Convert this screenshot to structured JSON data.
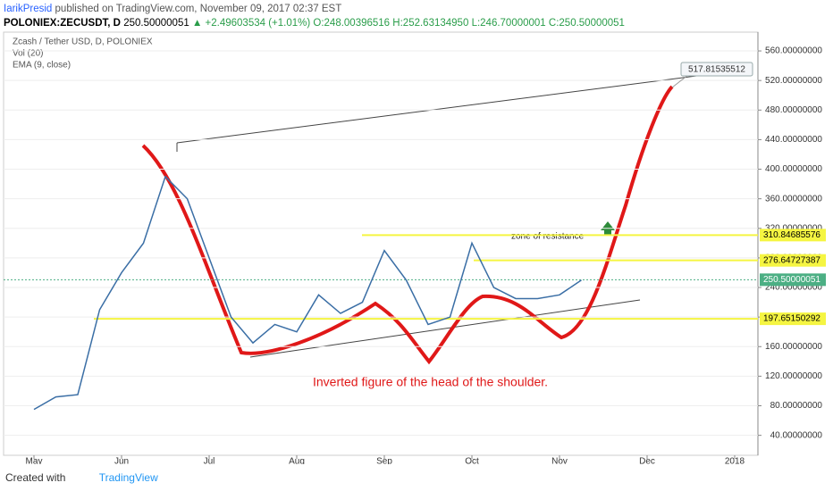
{
  "header": {
    "author": "IarikPresid",
    "published": "published on TradingView.com, November 09, 2017 02:37 EST",
    "symbol": "POLONIEX:ZECUSDT, D",
    "price": "250.50000051",
    "change": "▲ +2.49603534 (+1.01%)",
    "open": "O:248.00396516",
    "high": "H:252.63134950",
    "low": "L:246.70000001",
    "close": "C:250.50000051"
  },
  "legend": [
    "Zcash / Tether USD, D, POLONIEX",
    "Vol (20)",
    "EMA (9, close)"
  ],
  "footer": {
    "created": "Created with",
    "brand": "TradingView"
  },
  "chart_data": {
    "type": "line",
    "categories": [
      "May",
      null,
      null,
      null,
      "Jun",
      null,
      null,
      null,
      "Jul",
      null,
      null,
      null,
      "Aug",
      null,
      null,
      null,
      "Sep",
      null,
      null,
      null,
      "Oct",
      null,
      null,
      null,
      "Nov",
      null,
      null,
      null,
      "Dec",
      null,
      null,
      null,
      "2018"
    ],
    "series": [
      {
        "name": "Zcash / Tether USD, D, POLONIEX",
        "color": "#3a6ea5",
        "values": [
          75,
          92,
          95,
          210,
          260,
          300,
          390,
          360,
          280,
          200,
          165,
          190,
          180,
          230,
          205,
          220,
          290,
          250,
          190,
          200,
          300,
          240,
          225,
          225,
          230,
          250,
          null,
          null,
          null,
          null,
          null,
          null,
          null
        ]
      }
    ],
    "ylim": [
      13,
      583
    ],
    "yticks": [
      {
        "value": 40,
        "label": "40.00000000"
      },
      {
        "value": 80,
        "label": "80.00000000"
      },
      {
        "value": 120,
        "label": "120.00000000"
      },
      {
        "value": 160,
        "label": "160.00000000"
      },
      {
        "value": 200,
        "label": "200.00000000"
      },
      {
        "value": 240,
        "label": "240.00000000"
      },
      {
        "value": 280,
        "label": "280.00000000"
      },
      {
        "value": 320,
        "label": "320.00000000"
      },
      {
        "value": 360,
        "label": "360.00000000"
      },
      {
        "value": 400,
        "label": "400.00000000"
      },
      {
        "value": 440,
        "label": "440.00000000"
      },
      {
        "value": 480,
        "label": "480.00000000"
      },
      {
        "value": 520,
        "label": "520.00000000"
      },
      {
        "value": 560,
        "label": "560.00000000"
      }
    ],
    "levels": [
      {
        "value": 310.84685576,
        "label": "310.84685576",
        "color": "#f5f542"
      },
      {
        "value": 276.64727387,
        "label": "276.64727387",
        "color": "#f5f542"
      },
      {
        "value": 250.50000051,
        "label": "250.50000051",
        "color": "#4caf84"
      },
      {
        "value": 197.65150292,
        "label": "197.65150292",
        "color": "#f5f542"
      }
    ],
    "target": {
      "value": 517.81535512,
      "label": "517.81535512"
    },
    "annotations": [
      "zone of resistance",
      "Inverted figure of the head of the shoulder."
    ]
  }
}
